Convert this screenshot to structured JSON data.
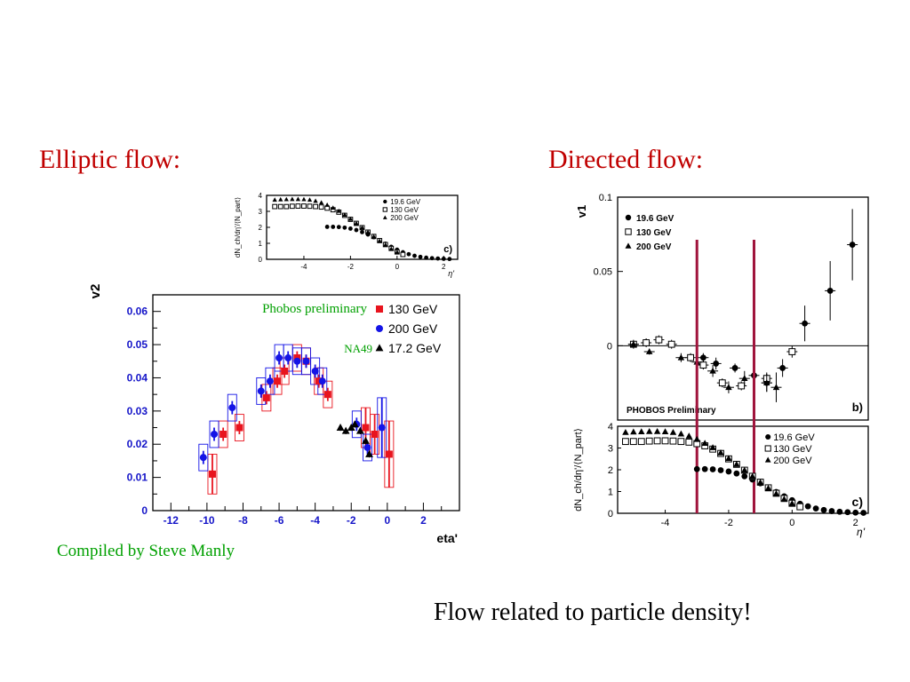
{
  "slide": {
    "heading_left": "Elliptic flow:",
    "heading_right": "Directed flow:",
    "credit": "Compiled by Steve Manly",
    "conclusion": "Flow related to particle density!"
  },
  "chart_data": [
    {
      "id": "density-small",
      "type": "scatter",
      "ylabel": "dN_ch/dη'/⟨N_part⟩",
      "xlabel": "η'",
      "panel_tag": "c)",
      "xlim": [
        -5.6,
        2.6
      ],
      "ylim": [
        0,
        4
      ],
      "xticks": [
        -4,
        -2,
        0,
        2
      ],
      "yticks": [
        0,
        1,
        2,
        3,
        4
      ],
      "legend_position": "top-right",
      "series": [
        {
          "name": "19.6 GeV",
          "marker": "circle-filled",
          "x": [
            -3.0,
            -2.75,
            -2.5,
            -2.25,
            -2.0,
            -1.75,
            -1.5,
            -1.25,
            -1.0,
            -0.75,
            -0.5,
            -0.25,
            0.0,
            0.25,
            0.5,
            0.75,
            1.0,
            1.25,
            1.5,
            1.75,
            2.0,
            2.25
          ],
          "y": [
            2.03,
            2.03,
            2.02,
            1.98,
            1.92,
            1.83,
            1.7,
            1.55,
            1.38,
            1.18,
            0.98,
            0.78,
            0.6,
            0.44,
            0.32,
            0.22,
            0.15,
            0.1,
            0.07,
            0.05,
            0.03,
            0.02
          ]
        },
        {
          "name": "130 GeV",
          "marker": "square-open",
          "x": [
            -5.25,
            -5.0,
            -4.75,
            -4.5,
            -4.25,
            -4.0,
            -3.75,
            -3.5,
            -3.25,
            -3.0,
            -2.75,
            -2.5,
            -2.25,
            -2.0,
            -1.75,
            -1.5,
            -1.25,
            -1.0,
            -0.75,
            -0.5,
            -0.25,
            0.0,
            0.25
          ],
          "y": [
            3.3,
            3.3,
            3.3,
            3.32,
            3.33,
            3.33,
            3.32,
            3.3,
            3.27,
            3.2,
            3.1,
            2.95,
            2.75,
            2.5,
            2.25,
            1.98,
            1.7,
            1.43,
            1.17,
            0.92,
            0.68,
            0.46,
            0.3
          ]
        },
        {
          "name": "200 GeV",
          "marker": "triangle-filled",
          "x": [
            -5.25,
            -5.0,
            -4.75,
            -4.5,
            -4.25,
            -4.0,
            -3.75,
            -3.5,
            -3.25,
            -3.0,
            -2.75,
            -2.5,
            -2.25,
            -2.0,
            -1.75,
            -1.5,
            -1.25,
            -1.0,
            -0.75,
            -0.5,
            -0.25,
            0.0
          ],
          "y": [
            3.72,
            3.74,
            3.75,
            3.76,
            3.76,
            3.75,
            3.72,
            3.65,
            3.55,
            3.4,
            3.22,
            3.02,
            2.78,
            2.52,
            2.25,
            1.98,
            1.7,
            1.42,
            1.15,
            0.9,
            0.65,
            0.45
          ]
        }
      ]
    },
    {
      "id": "v2-eta",
      "type": "scatter",
      "ylabel": "v2",
      "xlabel": "eta'",
      "xlim": [
        -13,
        4
      ],
      "ylim": [
        0,
        0.065
      ],
      "xticks": [
        -12,
        -10,
        -8,
        -6,
        -4,
        -2,
        0,
        2
      ],
      "yticks": [
        0,
        0.01,
        0.02,
        0.03,
        0.04,
        0.05,
        0.06
      ],
      "ytick_labels": [
        "0",
        "0.01",
        "0.02",
        "0.03",
        "0.04",
        "0.05",
        "0.06"
      ],
      "annotations": {
        "phobos": "Phobos preliminary",
        "na49": "NA49"
      },
      "legend_position": "top-right",
      "series": [
        {
          "name": "130 GeV",
          "color": "#e8141e",
          "marker": "square-filled",
          "x": [
            -9.7,
            -9.1,
            -8.2,
            -6.7,
            -6.1,
            -5.7,
            -5.0,
            -4.5,
            -3.8,
            -3.3,
            -1.2,
            -0.7,
            0.1
          ],
          "y": [
            0.011,
            0.023,
            0.025,
            0.034,
            0.039,
            0.042,
            0.046,
            0.045,
            0.039,
            0.035,
            0.025,
            0.023,
            0.017
          ],
          "err": [
            0.006,
            0.002,
            0.002,
            0.002,
            0.002,
            0.002,
            0.002,
            0.002,
            0.002,
            0.002,
            0.006,
            0.006,
            0.01
          ]
        },
        {
          "name": "200 GeV",
          "color": "#1414e6",
          "marker": "circle-filled",
          "x": [
            -10.2,
            -9.6,
            -8.6,
            -7.0,
            -6.5,
            -6.0,
            -5.5,
            -5.0,
            -4.5,
            -4.0,
            -3.6,
            -1.7,
            -1.1,
            -0.3
          ],
          "y": [
            0.016,
            0.023,
            0.031,
            0.036,
            0.039,
            0.046,
            0.046,
            0.045,
            0.045,
            0.042,
            0.039,
            0.026,
            0.019,
            0.025
          ],
          "err": [
            0.002,
            0.002,
            0.002,
            0.002,
            0.002,
            0.002,
            0.002,
            0.002,
            0.002,
            0.002,
            0.002,
            0.002,
            0.002,
            0.009
          ]
        },
        {
          "name": "17.2 GeV",
          "color": "#000000",
          "marker": "triangle-filled",
          "x": [
            -2.6,
            -2.3,
            -2.0,
            -1.8,
            -1.5,
            -1.2,
            -1.0
          ],
          "y": [
            0.025,
            0.024,
            0.025,
            0.026,
            0.024,
            0.021,
            0.017
          ],
          "err": [
            0.001,
            0.001,
            0.001,
            0.001,
            0.001,
            0.001,
            0.001
          ]
        }
      ]
    },
    {
      "id": "v1-eta",
      "type": "scatter",
      "ylabel": "v1",
      "panel_tag": "b)",
      "note": "PHOBOS Preliminary",
      "xlim": [
        -5.5,
        2.4
      ],
      "ylim": [
        -0.05,
        0.1
      ],
      "yticks": [
        0,
        0.05,
        0.1
      ],
      "ytick_labels": [
        "0",
        "0.05",
        "0.1"
      ],
      "legend_position": "top-left",
      "series": [
        {
          "name": "19.6 GeV",
          "marker": "circle-filled",
          "x": [
            -2.8,
            -2.4,
            -1.8,
            -1.2,
            -0.8,
            -0.3,
            0.4,
            1.2,
            1.9
          ],
          "y": [
            -0.008,
            -0.012,
            -0.015,
            -0.02,
            -0.025,
            -0.015,
            0.015,
            0.037,
            0.068
          ],
          "err": [
            0.003,
            0.004,
            0.003,
            0.004,
            0.006,
            0.006,
            0.012,
            0.02,
            0.024
          ]
        },
        {
          "name": "130 GeV",
          "marker": "square-open",
          "x": [
            -5.0,
            -4.6,
            -4.2,
            -3.8,
            -3.2,
            -2.8,
            -2.2,
            -1.6,
            -0.8,
            0.0
          ],
          "y": [
            0.001,
            0.002,
            0.004,
            0.001,
            -0.008,
            -0.013,
            -0.025,
            -0.027,
            -0.022,
            -0.004
          ],
          "err": [
            0.003,
            0.003,
            0.003,
            0.003,
            0.003,
            0.003,
            0.003,
            0.003,
            0.004,
            0.004
          ]
        },
        {
          "name": "200 GeV",
          "marker": "triangle-filled",
          "x": [
            -5.0,
            -4.5,
            -3.5,
            -3.0,
            -2.5,
            -2.0,
            -1.5,
            -0.8,
            -0.5
          ],
          "y": [
            0.001,
            -0.004,
            -0.008,
            -0.011,
            -0.017,
            -0.028,
            -0.022,
            -0.025,
            -0.028
          ],
          "err": [
            0.002,
            0.002,
            0.003,
            0.003,
            0.004,
            0.004,
            0.005,
            0.006,
            0.01
          ]
        }
      ]
    },
    {
      "id": "density-large",
      "type": "scatter",
      "ylabel": "dN_ch/dη'/⟨N_part⟩",
      "xlabel": "η'",
      "panel_tag": "c)",
      "xlim": [
        -5.5,
        2.4
      ],
      "ylim": [
        0,
        4
      ],
      "xticks": [
        -4,
        -2,
        0,
        2
      ],
      "yticks": [
        0,
        1,
        2,
        3,
        4
      ],
      "legend_position": "top-right",
      "vlines": [
        -3.0,
        -1.2
      ],
      "vline_color": "#a0143c",
      "series": [
        {
          "name": "19.6 GeV",
          "marker": "circle-filled",
          "x": [
            -3.0,
            -2.75,
            -2.5,
            -2.25,
            -2.0,
            -1.75,
            -1.5,
            -1.25,
            -1.0,
            -0.75,
            -0.5,
            -0.25,
            0.0,
            0.25,
            0.5,
            0.75,
            1.0,
            1.25,
            1.5,
            1.75,
            2.0,
            2.25
          ],
          "y": [
            2.03,
            2.03,
            2.02,
            1.98,
            1.92,
            1.83,
            1.7,
            1.55,
            1.38,
            1.18,
            0.98,
            0.78,
            0.6,
            0.44,
            0.32,
            0.22,
            0.15,
            0.1,
            0.07,
            0.05,
            0.03,
            0.02
          ]
        },
        {
          "name": "130 GeV",
          "marker": "square-open",
          "x": [
            -5.25,
            -5.0,
            -4.75,
            -4.5,
            -4.25,
            -4.0,
            -3.75,
            -3.5,
            -3.25,
            -3.0,
            -2.75,
            -2.5,
            -2.25,
            -2.0,
            -1.75,
            -1.5,
            -1.25,
            -1.0,
            -0.75,
            -0.5,
            -0.25,
            0.0,
            0.25
          ],
          "y": [
            3.3,
            3.3,
            3.3,
            3.32,
            3.33,
            3.33,
            3.32,
            3.3,
            3.27,
            3.2,
            3.1,
            2.95,
            2.75,
            2.5,
            2.25,
            1.98,
            1.7,
            1.43,
            1.17,
            0.92,
            0.68,
            0.46,
            0.3
          ]
        },
        {
          "name": "200 GeV",
          "marker": "triangle-filled",
          "x": [
            -5.25,
            -5.0,
            -4.75,
            -4.5,
            -4.25,
            -4.0,
            -3.75,
            -3.5,
            -3.25,
            -3.0,
            -2.75,
            -2.5,
            -2.25,
            -2.0,
            -1.75,
            -1.5,
            -1.25,
            -1.0,
            -0.75,
            -0.5,
            -0.25,
            0.0
          ],
          "y": [
            3.72,
            3.74,
            3.75,
            3.76,
            3.76,
            3.75,
            3.72,
            3.65,
            3.55,
            3.4,
            3.22,
            3.02,
            2.78,
            2.52,
            2.25,
            1.98,
            1.7,
            1.42,
            1.15,
            0.9,
            0.65,
            0.45
          ]
        }
      ]
    }
  ]
}
